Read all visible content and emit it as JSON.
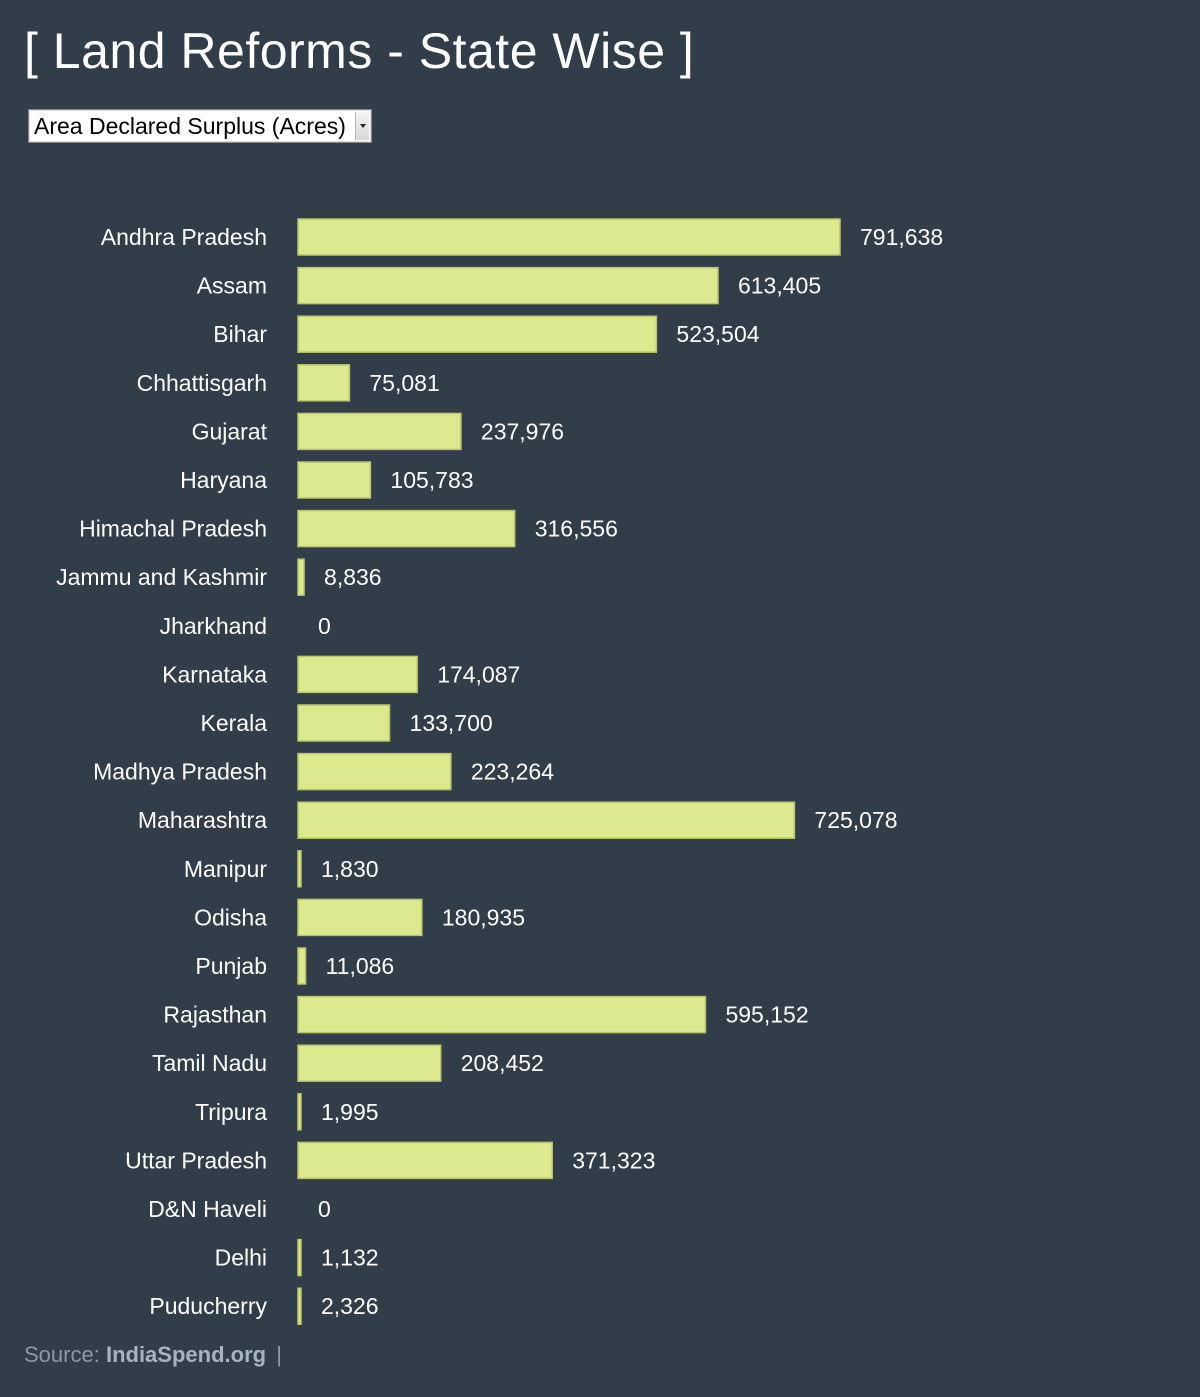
{
  "title": "[ Land Reforms - State Wise ]",
  "dropdown": {
    "selected": "Area Declared Surplus (Acres)"
  },
  "source": {
    "label": "Source:",
    "name": "IndiaSpend.org",
    "separator": "|"
  },
  "colors": {
    "background": "#323d4a",
    "bar_fill": "#dde98f",
    "bar_stroke": "#b9c46a",
    "text": "#ffffff",
    "source_text": "#8e98a5"
  },
  "chart_data": {
    "type": "bar",
    "orientation": "horizontal",
    "title": "",
    "xlabel": "",
    "ylabel": "",
    "xlim": [
      0,
      791638
    ],
    "grid": false,
    "categories": [
      "Andhra Pradesh",
      "Assam",
      "Bihar",
      "Chhattisgarh",
      "Gujarat",
      "Haryana",
      "Himachal Pradesh",
      "Jammu and Kashmir",
      "Jharkhand",
      "Karnataka",
      "Kerala",
      "Madhya Pradesh",
      "Maharashtra",
      "Manipur",
      "Odisha",
      "Punjab",
      "Rajasthan",
      "Tamil Nadu",
      "Tripura",
      "Uttar Pradesh",
      "D&N Haveli",
      "Delhi",
      "Puducherry"
    ],
    "values": [
      791638,
      613405,
      523504,
      75081,
      237976,
      105783,
      316556,
      8836,
      0,
      174087,
      133700,
      223264,
      725078,
      1830,
      180935,
      11086,
      595152,
      208452,
      1995,
      371323,
      0,
      1132,
      2326
    ],
    "value_labels": [
      "791,638",
      "613,405",
      "523,504",
      "75,081",
      "237,976",
      "105,783",
      "316,556",
      "8,836",
      "0",
      "174,087",
      "133,700",
      "223,264",
      "725,078",
      "1,830",
      "180,935",
      "11,086",
      "595,152",
      "208,452",
      "1,995",
      "371,323",
      "0",
      "1,132",
      "2,326"
    ]
  }
}
